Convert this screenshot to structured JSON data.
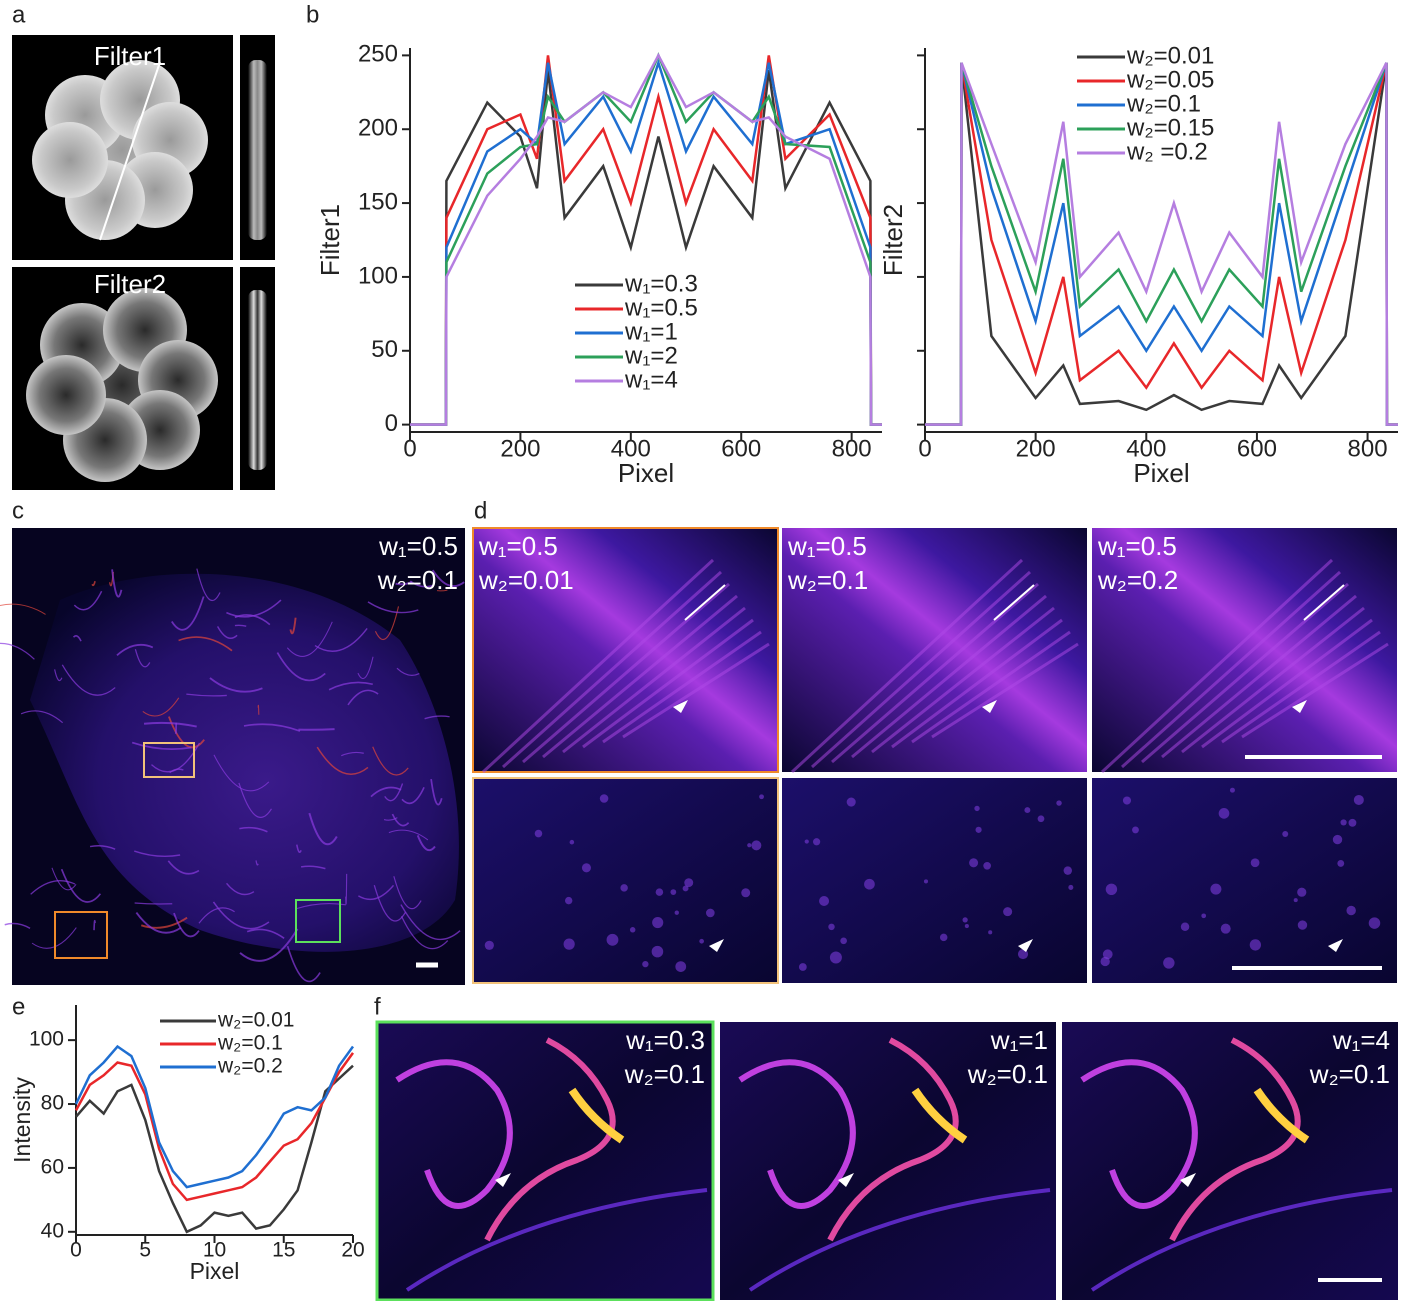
{
  "panel_letters": [
    "a",
    "b",
    "c",
    "d",
    "e",
    "f"
  ],
  "filters": [
    "Filter1",
    "Filter2"
  ],
  "image_c": [
    "w₁=0.5",
    "w₂=0.1"
  ],
  "images_d": [
    [
      "w₁=0.5",
      "w₂=0.01"
    ],
    [
      "w₁=0.5",
      "w₂=0.1"
    ],
    [
      "w₁=0.5",
      "w₂=0.2"
    ]
  ],
  "images_f": [
    [
      "w₁=0.3",
      "w₂=0.1"
    ],
    [
      "w₁=1",
      "w₂=0.1"
    ],
    [
      "w₁=4",
      "w₂=0.1"
    ]
  ],
  "chart_data": [
    {
      "type": "line",
      "xlabel": "Pixel",
      "ylabel": "Filter1",
      "x": [
        0,
        65,
        66,
        140,
        200,
        230,
        250,
        280,
        350,
        400,
        450,
        500,
        550,
        620,
        650,
        680,
        760,
        834,
        835,
        855
      ],
      "xlim": [
        0,
        855
      ],
      "ylim": [
        -5,
        255
      ],
      "xticks": [
        0,
        200,
        400,
        600,
        800
      ],
      "yticks": [
        0,
        50,
        100,
        150,
        200,
        250
      ],
      "ytick_labels": true,
      "series": [
        {
          "name": "w₁=0.3",
          "color": "#3a3a3a",
          "values": [
            0,
            0,
            165,
            218,
            195,
            160,
            240,
            140,
            175,
            120,
            195,
            120,
            175,
            140,
            240,
            160,
            218,
            165,
            0,
            0
          ]
        },
        {
          "name": "w₁=0.5",
          "color": "#e8272a",
          "values": [
            0,
            0,
            140,
            200,
            210,
            180,
            250,
            165,
            200,
            150,
            222,
            150,
            200,
            165,
            250,
            180,
            210,
            140,
            0,
            0
          ]
        },
        {
          "name": "w₁=1",
          "color": "#1f6fd1",
          "values": [
            0,
            0,
            120,
            185,
            200,
            190,
            245,
            190,
            222,
            185,
            245,
            185,
            222,
            190,
            245,
            190,
            200,
            120,
            0,
            0
          ]
        },
        {
          "name": "w₁=2",
          "color": "#2ca05a",
          "values": [
            0,
            0,
            110,
            170,
            188,
            190,
            222,
            205,
            225,
            205,
            250,
            205,
            225,
            205,
            222,
            190,
            188,
            110,
            0,
            0
          ]
        },
        {
          "name": "w₁=4",
          "color": "#b57ee0",
          "values": [
            0,
            0,
            100,
            155,
            180,
            195,
            208,
            205,
            225,
            215,
            250,
            215,
            225,
            205,
            208,
            195,
            180,
            100,
            0,
            0
          ]
        }
      ]
    },
    {
      "type": "line",
      "xlabel": "Pixel",
      "ylabel": "Filter2",
      "x": [
        0,
        65,
        66,
        120,
        200,
        250,
        280,
        350,
        400,
        450,
        500,
        550,
        610,
        640,
        680,
        760,
        834,
        835,
        855
      ],
      "xlim": [
        0,
        855
      ],
      "ylim": [
        -5,
        255
      ],
      "xticks": [
        0,
        200,
        400,
        600,
        800
      ],
      "yticks": [
        0,
        50,
        100,
        150,
        200,
        250
      ],
      "ytick_labels": false,
      "series": [
        {
          "name": "w₂=0.01",
          "color": "#3a3a3a",
          "values": [
            0,
            0,
            245,
            60,
            18,
            40,
            14,
            16,
            10,
            20,
            10,
            16,
            14,
            40,
            18,
            60,
            245,
            0,
            0
          ]
        },
        {
          "name": "w₂=0.05",
          "color": "#e8272a",
          "values": [
            0,
            0,
            245,
            125,
            35,
            100,
            30,
            50,
            25,
            55,
            25,
            50,
            30,
            100,
            35,
            125,
            245,
            0,
            0
          ]
        },
        {
          "name": "w₂=0.1",
          "color": "#1f6fd1",
          "values": [
            0,
            0,
            245,
            160,
            70,
            150,
            60,
            80,
            50,
            80,
            50,
            80,
            60,
            150,
            70,
            160,
            245,
            0,
            0
          ]
        },
        {
          "name": "w₂=0.15",
          "color": "#2ca05a",
          "values": [
            0,
            0,
            245,
            175,
            90,
            180,
            80,
            105,
            70,
            105,
            70,
            105,
            80,
            180,
            90,
            175,
            245,
            0,
            0
          ]
        },
        {
          "name": "w₂ =0.2",
          "color": "#b57ee0",
          "values": [
            0,
            0,
            245,
            190,
            110,
            205,
            100,
            130,
            90,
            150,
            90,
            130,
            100,
            205,
            110,
            190,
            245,
            0,
            0
          ]
        }
      ]
    },
    {
      "type": "line",
      "xlabel": "Pixel",
      "ylabel": "Intensity",
      "x": [
        0,
        1,
        2,
        3,
        4,
        5,
        6,
        7,
        8,
        9,
        10,
        11,
        12,
        13,
        14,
        15,
        16,
        17,
        18,
        19,
        20
      ],
      "xlim": [
        0,
        20
      ],
      "ylim": [
        39,
        111
      ],
      "xticks": [
        0,
        5,
        10,
        15,
        20
      ],
      "yticks": [
        40,
        60,
        80,
        100
      ],
      "ytick_labels": true,
      "series": [
        {
          "name": "w₂=0.01",
          "color": "#3a3a3a",
          "values": [
            76,
            81,
            77,
            84,
            86,
            75,
            59,
            49,
            40,
            42,
            46,
            45,
            46,
            41,
            42,
            47,
            53,
            68,
            84,
            88,
            92
          ]
        },
        {
          "name": "w₂=0.1",
          "color": "#e8272a",
          "values": [
            78,
            86,
            89,
            93,
            92,
            83,
            66,
            55,
            50,
            51,
            52,
            53,
            54,
            57,
            62,
            67,
            69,
            74,
            82,
            90,
            96
          ]
        },
        {
          "name": "w₂=0.2",
          "color": "#1f6fd1",
          "values": [
            80,
            89,
            93,
            98,
            95,
            85,
            68,
            59,
            54,
            55,
            56,
            57,
            59,
            64,
            70,
            77,
            79,
            78,
            82,
            92,
            98
          ]
        }
      ]
    }
  ]
}
